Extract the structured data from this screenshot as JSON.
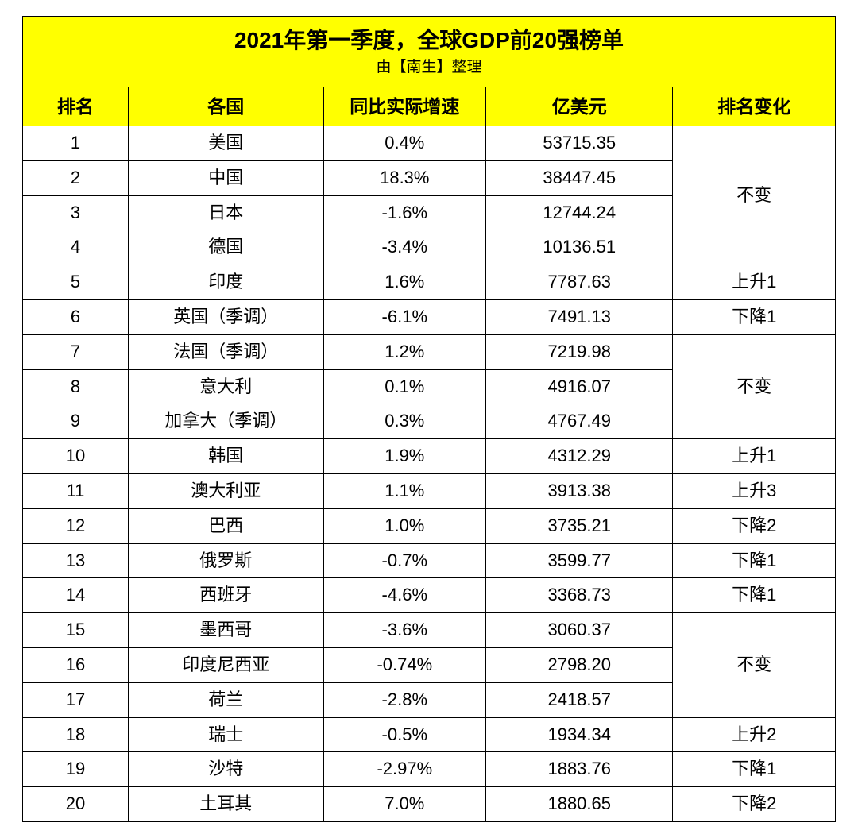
{
  "table": {
    "title": "2021年第一季度，全球GDP前20强榜单",
    "subtitle": "由【南生】整理",
    "columns": [
      "排名",
      "各国",
      "同比实际增速",
      "亿美元",
      "排名变化"
    ],
    "groups": [
      {
        "change": "不变",
        "rows": [
          {
            "rank": "1",
            "country": "美国",
            "growth": "0.4%",
            "gdp": "53715.35"
          },
          {
            "rank": "2",
            "country": "中国",
            "growth": "18.3%",
            "gdp": "38447.45"
          },
          {
            "rank": "3",
            "country": "日本",
            "growth": "-1.6%",
            "gdp": "12744.24"
          },
          {
            "rank": "4",
            "country": "德国",
            "growth": "-3.4%",
            "gdp": "10136.51"
          }
        ]
      },
      {
        "change": "上升1",
        "rows": [
          {
            "rank": "5",
            "country": "印度",
            "growth": "1.6%",
            "gdp": "7787.63"
          }
        ]
      },
      {
        "change": "下降1",
        "rows": [
          {
            "rank": "6",
            "country": "英国（季调）",
            "growth": "-6.1%",
            "gdp": "7491.13"
          }
        ]
      },
      {
        "change": "不变",
        "rows": [
          {
            "rank": "7",
            "country": "法国（季调）",
            "growth": "1.2%",
            "gdp": "7219.98"
          },
          {
            "rank": "8",
            "country": "意大利",
            "growth": "0.1%",
            "gdp": "4916.07"
          },
          {
            "rank": "9",
            "country": "加拿大（季调）",
            "growth": "0.3%",
            "gdp": "4767.49"
          }
        ]
      },
      {
        "change": "上升1",
        "rows": [
          {
            "rank": "10",
            "country": "韩国",
            "growth": "1.9%",
            "gdp": "4312.29"
          }
        ]
      },
      {
        "change": "上升3",
        "rows": [
          {
            "rank": "11",
            "country": "澳大利亚",
            "growth": "1.1%",
            "gdp": "3913.38"
          }
        ]
      },
      {
        "change": "下降2",
        "rows": [
          {
            "rank": "12",
            "country": "巴西",
            "growth": "1.0%",
            "gdp": "3735.21"
          }
        ]
      },
      {
        "change": "下降1",
        "rows": [
          {
            "rank": "13",
            "country": "俄罗斯",
            "growth": "-0.7%",
            "gdp": "3599.77"
          }
        ]
      },
      {
        "change": "下降1",
        "rows": [
          {
            "rank": "14",
            "country": "西班牙",
            "growth": "-4.6%",
            "gdp": "3368.73"
          }
        ]
      },
      {
        "change": "不变",
        "rows": [
          {
            "rank": "15",
            "country": "墨西哥",
            "growth": "-3.6%",
            "gdp": "3060.37"
          },
          {
            "rank": "16",
            "country": "印度尼西亚",
            "growth": "-0.74%",
            "gdp": "2798.20"
          },
          {
            "rank": "17",
            "country": "荷兰",
            "growth": "-2.8%",
            "gdp": "2418.57"
          }
        ]
      },
      {
        "change": "上升2",
        "rows": [
          {
            "rank": "18",
            "country": "瑞士",
            "growth": "-0.5%",
            "gdp": "1934.34"
          }
        ]
      },
      {
        "change": "下降1",
        "rows": [
          {
            "rank": "19",
            "country": "沙特",
            "growth": "-2.97%",
            "gdp": "1883.76"
          }
        ]
      },
      {
        "change": "下降2",
        "rows": [
          {
            "rank": "20",
            "country": "土耳其",
            "growth": "7.0%",
            "gdp": "1880.65"
          }
        ]
      }
    ],
    "style": {
      "header_bg": "#ffff00",
      "border_color": "#000000",
      "text_color": "#000000",
      "title_fontsize": 28,
      "header_fontsize": 23,
      "cell_fontsize": 22,
      "subtitle_fontsize": 19
    }
  }
}
